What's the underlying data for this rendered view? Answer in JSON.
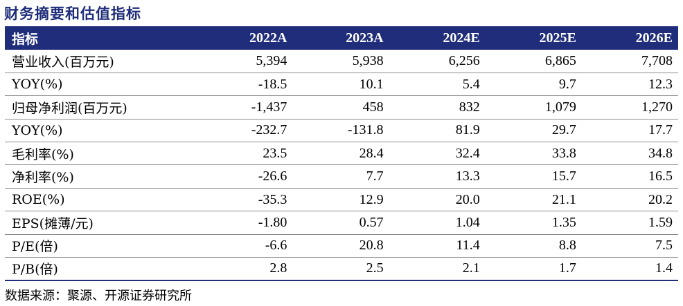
{
  "title": "财务摘要和估值指标",
  "table": {
    "headers": [
      "指标",
      "2022A",
      "2023A",
      "2024E",
      "2025E",
      "2026E"
    ],
    "rows": [
      {
        "label": "营业收入(百万元)",
        "values": [
          "5,394",
          "5,938",
          "6,256",
          "6,865",
          "7,708"
        ]
      },
      {
        "label": "YOY(%)",
        "values": [
          "-18.5",
          "10.1",
          "5.4",
          "9.7",
          "12.3"
        ]
      },
      {
        "label": "归母净利润(百万元)",
        "values": [
          "-1,437",
          "458",
          "832",
          "1,079",
          "1,270"
        ]
      },
      {
        "label": "YOY(%)",
        "values": [
          "-232.7",
          "-131.8",
          "81.9",
          "29.7",
          "17.7"
        ]
      },
      {
        "label": "毛利率(%)",
        "values": [
          "23.5",
          "28.4",
          "32.4",
          "33.8",
          "34.8"
        ]
      },
      {
        "label": "净利率(%)",
        "values": [
          "-26.6",
          "7.7",
          "13.3",
          "15.7",
          "16.5"
        ]
      },
      {
        "label": "ROE(%)",
        "values": [
          "-35.3",
          "12.9",
          "20.0",
          "21.1",
          "20.2"
        ]
      },
      {
        "label": "EPS(摊薄/元)",
        "values": [
          "-1.80",
          "0.57",
          "1.04",
          "1.35",
          "1.59"
        ]
      },
      {
        "label": "P/E(倍)",
        "values": [
          "-6.6",
          "20.8",
          "11.4",
          "8.8",
          "7.5"
        ]
      },
      {
        "label": "P/B(倍)",
        "values": [
          "2.8",
          "2.5",
          "2.1",
          "1.7",
          "1.4"
        ]
      }
    ]
  },
  "source": "数据来源：聚源、开源证券研究所",
  "colors": {
    "header_bg": "#1f2d7a",
    "title": "#1f2d7a",
    "header_text": "#ffffff"
  }
}
